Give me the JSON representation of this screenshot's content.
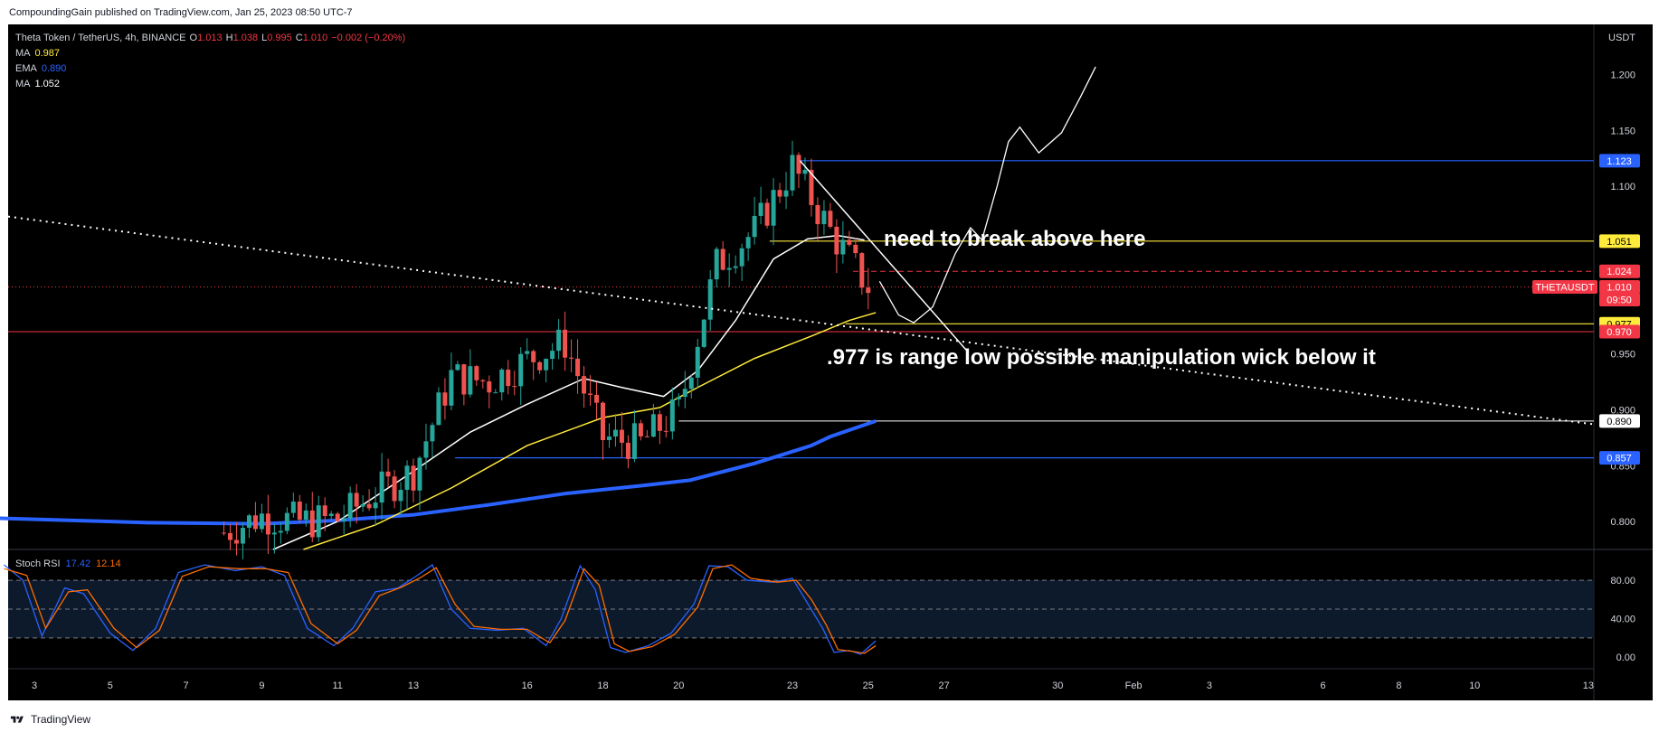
{
  "publisher": "CompoundingGain published on TradingView.com, Jan 25, 2023 08:50 UTC-7",
  "footer": {
    "brand": "TradingView",
    "logo_icon": "tradingview-logo-icon"
  },
  "legend": {
    "symbol": "Theta Token / TetherUS, 4h, BINANCE",
    "ohlc": {
      "o_label": "O",
      "o": "1.013",
      "h_label": "H",
      "h": "1.038",
      "l_label": "L",
      "l": "0.995",
      "c_label": "C",
      "c": "1.010",
      "change": "−0.002 (−0.20%)"
    },
    "indicators": [
      {
        "name": "MA",
        "value": "0.987",
        "color": "#ffeb3b"
      },
      {
        "name": "EMA",
        "value": "0.890",
        "color": "#2962ff"
      },
      {
        "name": "MA",
        "value": "1.052",
        "color": "#ffffff"
      }
    ]
  },
  "colors": {
    "background": "#000000",
    "up": "#26a69a",
    "down": "#ef5350",
    "ma_fast": "#ffeb3b",
    "ma_slow": "#ffffff",
    "ema": "#2962ff",
    "stoch_k": "#2962ff",
    "stoch_d": "#ff6d00"
  },
  "annotations": [
    {
      "text": "need to break above here"
    },
    {
      "text": ".977 is range low possible manipulation wick below it"
    }
  ],
  "price_axis": {
    "currency": "USDT",
    "ticks": [
      "1.200",
      "1.150",
      "1.100",
      "0.950",
      "0.900",
      "0.850",
      "0.800"
    ],
    "badges": [
      {
        "text": "1.123",
        "bg": "#2962ff",
        "fg": "#ffffff"
      },
      {
        "text": "1.051",
        "bg": "#ffeb3b",
        "fg": "#000000"
      },
      {
        "text": "1.024",
        "bg": "#f23645",
        "fg": "#ffffff"
      },
      {
        "text": "1.010",
        "bg": "#f23645",
        "fg": "#ffffff"
      },
      {
        "text": "09:50",
        "bg": "#f23645",
        "fg": "#ffffff"
      },
      {
        "text": "0.977",
        "bg": "#ffeb3b",
        "fg": "#000000"
      },
      {
        "text": "0.970",
        "bg": "#f23645",
        "fg": "#ffffff"
      },
      {
        "text": "0.890",
        "bg": "#ffffff",
        "fg": "#000000"
      },
      {
        "text": "0.857",
        "bg": "#2962ff",
        "fg": "#ffffff"
      }
    ],
    "ticker_label": "THETAUSDT"
  },
  "time_axis": {
    "ticks": [
      "3",
      "5",
      "7",
      "9",
      "11",
      "13",
      "16",
      "18",
      "20",
      "23",
      "25",
      "27",
      "30",
      "Feb",
      "3",
      "6",
      "8",
      "10",
      "13"
    ]
  },
  "stoch": {
    "label": "Stoch RSI",
    "k_value": "17.42",
    "d_value": "12.14",
    "ticks": [
      "80.00",
      "40.00",
      "0.00"
    ]
  },
  "chart_data": [
    {
      "type": "candlestick",
      "symbol": "THETAUSDT",
      "timeframe": "4h",
      "ylim": [
        0.775,
        1.245
      ],
      "xlim": [
        "2023-01-02",
        "2023-02-13"
      ],
      "x_ticks": [
        "3",
        "5",
        "7",
        "9",
        "11",
        "13",
        "16",
        "18",
        "20",
        "23",
        "25",
        "27",
        "30",
        "Feb",
        "3",
        "6",
        "8",
        "10",
        "13"
      ],
      "last_price": 1.01,
      "horizontal_levels": [
        1.123,
        1.051,
        1.024,
        0.977,
        0.97,
        0.89,
        0.857
      ],
      "close_path": [
        {
          "d": "2023-01-08",
          "c": 0.79
        },
        {
          "d": "2023-01-09",
          "c": 0.805
        },
        {
          "d": "2023-01-10",
          "c": 0.8
        },
        {
          "d": "2023-01-11",
          "c": 0.802
        },
        {
          "d": "2023-01-12",
          "c": 0.825
        },
        {
          "d": "2023-01-13",
          "c": 0.845
        },
        {
          "d": "2023-01-14",
          "c": 0.93
        },
        {
          "d": "2023-01-15",
          "c": 0.925
        },
        {
          "d": "2023-01-16",
          "c": 0.945
        },
        {
          "d": "2023-01-17",
          "c": 0.96
        },
        {
          "d": "2023-01-18",
          "c": 0.875
        },
        {
          "d": "2023-01-19",
          "c": 0.87
        },
        {
          "d": "2023-01-20",
          "c": 0.9
        },
        {
          "d": "2023-01-21",
          "c": 1.03
        },
        {
          "d": "2023-01-22",
          "c": 1.06
        },
        {
          "d": "2023-01-23",
          "c": 1.118
        },
        {
          "d": "2023-01-24",
          "c": 1.06
        },
        {
          "d": "2023-01-25",
          "c": 1.01
        }
      ],
      "series": [
        {
          "name": "MA",
          "value": 0.987
        },
        {
          "name": "EMA",
          "value": 0.89
        },
        {
          "name": "MA",
          "value": 1.052
        }
      ]
    },
    {
      "type": "line",
      "title": "Stoch RSI",
      "ylim": [
        -12,
        112
      ],
      "bands": [
        80,
        20
      ],
      "series": [
        {
          "name": "K",
          "last": 17.42,
          "points": [
            [
              2.2,
              96
            ],
            [
              2.7,
              80
            ],
            [
              3.2,
              22
            ],
            [
              3.8,
              72
            ],
            [
              4.3,
              66
            ],
            [
              5.0,
              25
            ],
            [
              5.6,
              7
            ],
            [
              6.2,
              30
            ],
            [
              6.8,
              88
            ],
            [
              7.5,
              96
            ],
            [
              8.3,
              90
            ],
            [
              9.0,
              94
            ],
            [
              9.6,
              85
            ],
            [
              10.2,
              30
            ],
            [
              10.9,
              12
            ],
            [
              11.4,
              30
            ],
            [
              12.0,
              68
            ],
            [
              12.6,
              72
            ],
            [
              13.1,
              85
            ],
            [
              13.5,
              96
            ],
            [
              14.0,
              50
            ],
            [
              14.5,
              30
            ],
            [
              15.2,
              28
            ],
            [
              15.9,
              30
            ],
            [
              16.5,
              12
            ],
            [
              16.9,
              40
            ],
            [
              17.4,
              95
            ],
            [
              17.8,
              70
            ],
            [
              18.2,
              10
            ],
            [
              18.6,
              5
            ],
            [
              19.2,
              12
            ],
            [
              19.8,
              25
            ],
            [
              20.4,
              55
            ],
            [
              20.8,
              95
            ],
            [
              21.3,
              94
            ],
            [
              21.8,
              80
            ],
            [
              22.5,
              78
            ],
            [
              23.0,
              82
            ],
            [
              23.4,
              56
            ],
            [
              23.8,
              30
            ],
            [
              24.1,
              5
            ],
            [
              24.5,
              7
            ],
            [
              24.8,
              3
            ],
            [
              25.2,
              17
            ]
          ]
        },
        {
          "name": "D",
          "last": 12.14,
          "points": [
            [
              2.2,
              92
            ],
            [
              2.8,
              85
            ],
            [
              3.3,
              30
            ],
            [
              3.9,
              68
            ],
            [
              4.4,
              70
            ],
            [
              5.1,
              30
            ],
            [
              5.7,
              10
            ],
            [
              6.3,
              28
            ],
            [
              6.9,
              84
            ],
            [
              7.6,
              94
            ],
            [
              8.4,
              92
            ],
            [
              9.1,
              92
            ],
            [
              9.7,
              88
            ],
            [
              10.3,
              35
            ],
            [
              11.0,
              14
            ],
            [
              11.5,
              28
            ],
            [
              12.1,
              64
            ],
            [
              12.7,
              73
            ],
            [
              13.2,
              83
            ],
            [
              13.6,
              93
            ],
            [
              14.1,
              55
            ],
            [
              14.6,
              32
            ],
            [
              15.3,
              29
            ],
            [
              16.0,
              29
            ],
            [
              16.6,
              15
            ],
            [
              17.0,
              38
            ],
            [
              17.5,
              92
            ],
            [
              17.9,
              75
            ],
            [
              18.3,
              14
            ],
            [
              18.7,
              6
            ],
            [
              19.3,
              11
            ],
            [
              19.9,
              24
            ],
            [
              20.5,
              52
            ],
            [
              20.9,
              92
            ],
            [
              21.4,
              96
            ],
            [
              21.9,
              82
            ],
            [
              22.6,
              78
            ],
            [
              23.1,
              80
            ],
            [
              23.5,
              60
            ],
            [
              23.9,
              33
            ],
            [
              24.2,
              8
            ],
            [
              24.6,
              6
            ],
            [
              24.9,
              4
            ],
            [
              25.2,
              12
            ]
          ]
        }
      ]
    }
  ]
}
